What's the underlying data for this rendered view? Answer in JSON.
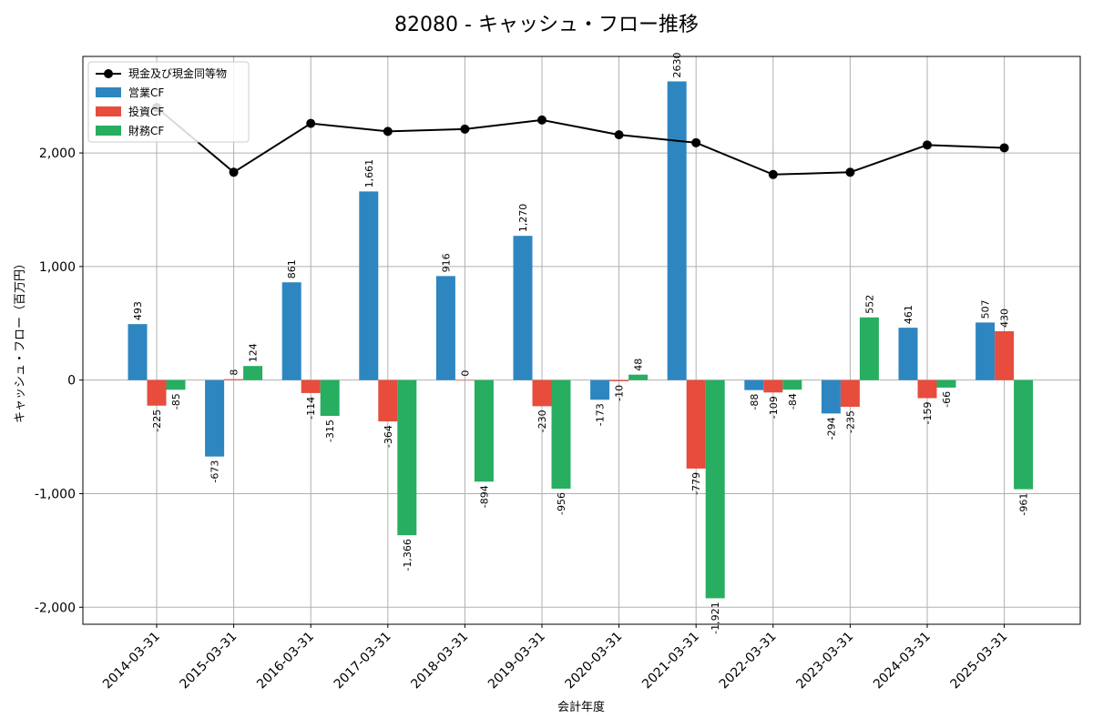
{
  "chart_data": {
    "type": "bar",
    "title": "82080 - キャッシュ・フロー推移",
    "xlabel": "会計年度",
    "ylabel": "キャッシュ・フロー（百万円）",
    "categories": [
      "2014-03-31",
      "2015-03-31",
      "2016-03-31",
      "2017-03-31",
      "2018-03-31",
      "2019-03-31",
      "2020-03-31",
      "2021-03-31",
      "2022-03-31",
      "2023-03-31",
      "2024-03-31",
      "2025-03-31"
    ],
    "ylim": [
      -2150,
      2850
    ],
    "yticks": [
      -2000,
      -1000,
      0,
      1000,
      2000
    ],
    "ytick_labels": [
      "-2,000",
      "-1,000",
      "0",
      "1,000",
      "2,000"
    ],
    "grid": true,
    "legend_position": "top-left",
    "series": [
      {
        "name": "営業CF",
        "kind": "bar",
        "color": "#2e86c1",
        "values": [
          493,
          -673,
          861,
          1661,
          916,
          1270,
          -173,
          2630,
          -88,
          -294,
          461,
          507
        ],
        "labels": [
          "493",
          "-673",
          "861",
          "1,661",
          "916",
          "1,270",
          "-173",
          "2630",
          "-88",
          "-294",
          "461",
          "507"
        ]
      },
      {
        "name": "投資CF",
        "kind": "bar",
        "color": "#e74c3c",
        "values": [
          -225,
          8,
          -114,
          -364,
          0,
          -230,
          -10,
          -779,
          -109,
          -235,
          -159,
          430
        ],
        "labels": [
          "-225",
          "8",
          "-114",
          "-364",
          "0",
          "-230",
          "-10",
          "-779",
          "-109",
          "-235",
          "-159",
          "430"
        ]
      },
      {
        "name": "財務CF",
        "kind": "bar",
        "color": "#27ae60",
        "values": [
          -85,
          124,
          -315,
          -1366,
          -894,
          -956,
          48,
          -1921,
          -84,
          552,
          -66,
          -961
        ],
        "labels": [
          "-85",
          "124",
          "-315",
          "-1,366",
          "-894",
          "-956",
          "48",
          "-1,921",
          "-84",
          "552",
          "-66",
          "-961"
        ]
      }
    ],
    "line_series": {
      "name": "現金及び現金同等物",
      "kind": "line",
      "color": "#000000",
      "values": [
        2400,
        1830,
        2260,
        2190,
        2210,
        2290,
        2160,
        2090,
        1810,
        1830,
        2070,
        2045
      ]
    }
  }
}
